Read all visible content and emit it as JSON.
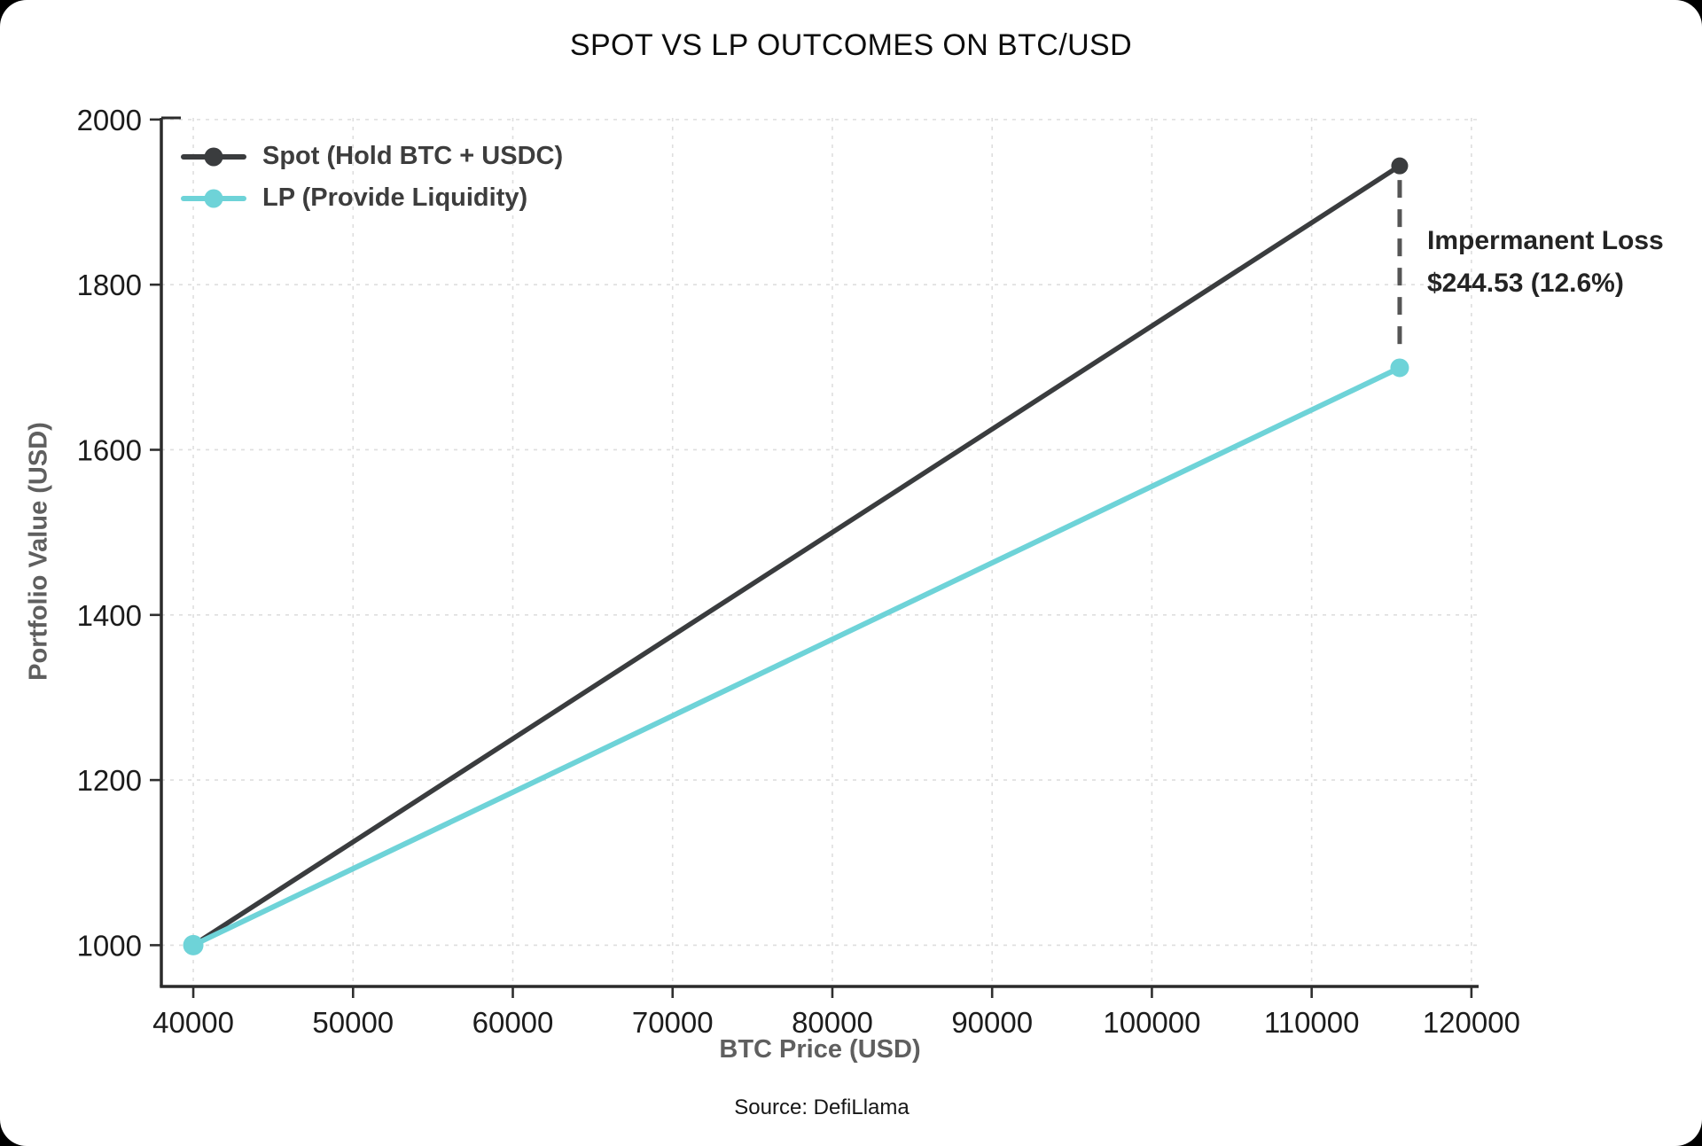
{
  "title": "SPOT VS LP OUTCOMES ON BTC/USD",
  "legend": {
    "items": [
      {
        "label": "Spot (Hold BTC + USDC)",
        "color": "#3a3c3e"
      },
      {
        "label": "LP (Provide Liquidity)",
        "color": "#6ed3d8"
      }
    ]
  },
  "annotation": {
    "line1": "Impermanent Loss",
    "line2": "$244.53 (12.6%)"
  },
  "axes": {
    "xlabel": "BTC Price (USD)",
    "ylabel": "Portfolio Value (USD)"
  },
  "source": "Source: DefiLlama",
  "colors": {
    "spot_line": "#3a3c3e",
    "lp_line": "#6ed3d8",
    "grid": "#dedede",
    "spine": "#2b2b2b",
    "tick": "#2f2f2f",
    "dashed_connector": "#555555",
    "background": "#ffffff"
  },
  "chart_data": {
    "type": "line",
    "title": "SPOT VS LP OUTCOMES ON BTC/USD",
    "xlabel": "BTC Price (USD)",
    "ylabel": "Portfolio Value (USD)",
    "x": [
      40000,
      115509
    ],
    "series": [
      {
        "name": "Spot (Hold BTC + USDC)",
        "values": [
          1000,
          1943.86
        ]
      },
      {
        "name": "LP (Provide Liquidity)",
        "values": [
          1000,
          1699.33
        ]
      }
    ],
    "x_ticks": [
      40000,
      50000,
      60000,
      70000,
      80000,
      90000,
      100000,
      110000,
      120000
    ],
    "y_ticks": [
      1000,
      1200,
      1400,
      1600,
      1800,
      2000
    ],
    "xlim": [
      38000,
      120450
    ],
    "ylim": [
      950,
      2002
    ],
    "grid": true,
    "legend_position": "upper-left",
    "annotation": {
      "label": "Impermanent Loss",
      "value": "$244.53 (12.6%)",
      "impermanent_loss_usd": 244.53,
      "impermanent_loss_pct": 12.6,
      "attached_to_x": 115509
    }
  }
}
